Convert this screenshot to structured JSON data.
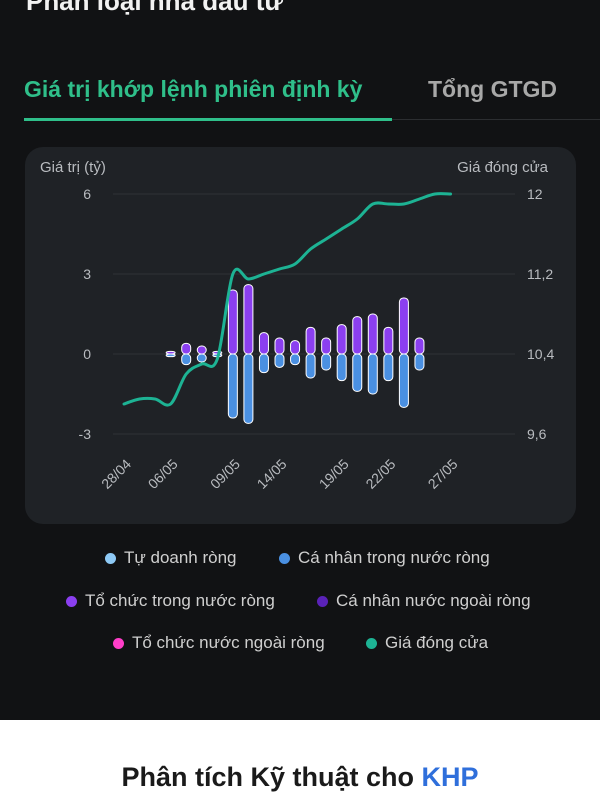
{
  "section": {
    "title": "Phân loại nhà đầu tư"
  },
  "tabs": [
    {
      "label": "Giá trị khớp lệnh phiên định kỳ",
      "active": true
    },
    {
      "label": "Tổng GTGD",
      "active": false
    }
  ],
  "colors": {
    "accent": "#2fbf8a",
    "tu_doanh": "#8ec9f5",
    "ca_nhan_trong_nuoc": "#4a90e2",
    "to_chuc_trong_nuoc": "#8b3ff0",
    "ca_nhan_nuoc_ngoai": "#5a22b8",
    "to_chuc_nuoc_ngoai": "#ff3ec9",
    "gia_dong_cua": "#1db394"
  },
  "chart_data": {
    "type": "bar",
    "y_left_label": "Giá trị (tỷ)",
    "y_right_label": "Giá đóng cửa",
    "y_left_ticks": [
      "6",
      "3",
      "0",
      "-3"
    ],
    "y_right_ticks": [
      "12",
      "11,2",
      "10,4",
      "9,6"
    ],
    "ylim_left": [
      -3,
      6
    ],
    "ylim_right": [
      9.6,
      12
    ],
    "x_tick_labels": [
      "28/04",
      "06/05",
      "09/05",
      "14/05",
      "19/05",
      "22/05",
      "27/05"
    ],
    "x_tick_positions": [
      0,
      3,
      7,
      10,
      14,
      17,
      21
    ],
    "bar_index": [
      3,
      4,
      5,
      6,
      7,
      8,
      9,
      10,
      11,
      12,
      13,
      14,
      15,
      16,
      17,
      18,
      19
    ],
    "series": [
      {
        "name": "Cá nhân trong nước ròng",
        "values": [
          -0.1,
          -0.4,
          -0.3,
          -0.1,
          -2.4,
          -2.6,
          -0.7,
          -0.5,
          -0.4,
          -0.9,
          -0.6,
          -1.0,
          -1.4,
          -1.5,
          -1.0,
          -2.0,
          -0.6
        ]
      },
      {
        "name": "Tổ chức trong nước ròng",
        "values": [
          0.1,
          0.4,
          0.3,
          0.1,
          2.4,
          2.6,
          0.8,
          0.6,
          0.5,
          1.0,
          0.6,
          1.1,
          1.4,
          1.5,
          1.0,
          2.1,
          0.6
        ]
      }
    ],
    "close_price": {
      "name": "Giá đóng cửa",
      "x": [
        0,
        1,
        2,
        3,
        4,
        5,
        6,
        7,
        8,
        9,
        10,
        11,
        12,
        13,
        14,
        15,
        16,
        17,
        18,
        19,
        20,
        21
      ],
      "values": [
        9.9,
        9.95,
        9.95,
        9.9,
        10.2,
        10.3,
        10.35,
        11.2,
        11.15,
        11.2,
        11.25,
        11.3,
        11.45,
        11.55,
        11.65,
        11.75,
        11.9,
        11.9,
        11.9,
        11.95,
        12.0,
        12.0
      ]
    }
  },
  "legend": [
    {
      "label": "Tự doanh ròng",
      "color": "#8ec9f5"
    },
    {
      "label": "Cá nhân trong nước ròng",
      "color": "#4a90e2"
    },
    {
      "label": "Tổ chức trong nước ròng",
      "color": "#8b3ff0"
    },
    {
      "label": "Cá nhân nước ngoài ròng",
      "color": "#5a22b8"
    },
    {
      "label": "Tổ chức nước ngoài ròng",
      "color": "#ff3ec9"
    },
    {
      "label": "Giá đóng cửa",
      "color": "#1db394"
    }
  ],
  "bottom": {
    "title_prefix": "Phân tích Kỹ thuật cho ",
    "ticker": "KHP"
  }
}
